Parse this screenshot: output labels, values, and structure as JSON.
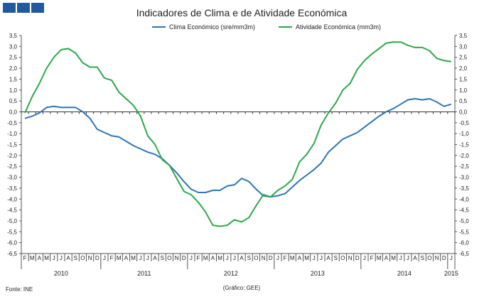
{
  "chart_data": {
    "type": "line",
    "title": "Indicadores de Clima e de Atividade Económica",
    "source": "Fonte: INE",
    "credit": "(Gráfico: GEE)",
    "ylim": [
      -6.5,
      3.5
    ],
    "yticks": [
      "3,5",
      "3,0",
      "2,5",
      "2,0",
      "1,5",
      "1,0",
      "0,5",
      "0,0",
      "-0,5",
      "-1,0",
      "-1,5",
      "-2,0",
      "-2,5",
      "-3,0",
      "-3,5",
      "-4,0",
      "-4,5",
      "-5,0",
      "-5,5",
      "-6,0",
      "-6,5"
    ],
    "months": [
      "F",
      "M",
      "A",
      "M",
      "J",
      "J",
      "A",
      "S",
      "O",
      "N",
      "D",
      "J",
      "F",
      "M",
      "A",
      "M",
      "J",
      "J",
      "A",
      "S",
      "O",
      "N",
      "D",
      "J",
      "F",
      "M",
      "A",
      "M",
      "J",
      "J",
      "A",
      "S",
      "O",
      "N",
      "D",
      "J",
      "F",
      "M",
      "A",
      "M",
      "J",
      "J",
      "A",
      "S",
      "O",
      "N",
      "D",
      "J",
      "F",
      "M",
      "A",
      "M",
      "J",
      "J",
      "A",
      "S",
      "O",
      "N",
      "D",
      "J"
    ],
    "years": [
      {
        "label": "2010",
        "start": 0,
        "end": 10
      },
      {
        "label": "2011",
        "start": 11,
        "end": 22
      },
      {
        "label": "2012",
        "start": 23,
        "end": 34
      },
      {
        "label": "2013",
        "start": 35,
        "end": 46
      },
      {
        "label": "2014",
        "start": 47,
        "end": 58
      },
      {
        "label": "2015",
        "start": 59,
        "end": 59
      }
    ],
    "series": [
      {
        "name": "Clima Económico (sre/mm3m)",
        "color": "#2e75b6",
        "values": [
          -0.3,
          -0.2,
          -0.05,
          0.2,
          0.25,
          0.2,
          0.2,
          0.2,
          0.0,
          -0.3,
          -0.8,
          -0.95,
          -1.1,
          -1.15,
          -1.35,
          -1.55,
          -1.7,
          -1.85,
          -1.95,
          -2.15,
          -2.45,
          -2.8,
          -3.2,
          -3.55,
          -3.7,
          -3.7,
          -3.6,
          -3.6,
          -3.4,
          -3.35,
          -3.05,
          -3.2,
          -3.55,
          -3.85,
          -3.9,
          -3.85,
          -3.75,
          -3.45,
          -3.15,
          -2.9,
          -2.65,
          -2.35,
          -1.85,
          -1.55,
          -1.25,
          -1.1,
          -0.95,
          -0.7,
          -0.45,
          -0.2,
          0.0,
          0.15,
          0.35,
          0.55,
          0.6,
          0.55,
          0.6,
          0.45,
          0.25,
          0.35
        ]
      },
      {
        "name": "Atividade Económica (mm3m)",
        "color": "#2ca84a",
        "values": [
          -0.05,
          0.7,
          1.3,
          2.0,
          2.5,
          2.85,
          2.9,
          2.7,
          2.25,
          2.05,
          2.05,
          1.55,
          1.45,
          0.9,
          0.6,
          0.3,
          -0.2,
          -1.1,
          -1.5,
          -2.2,
          -2.45,
          -3.05,
          -3.65,
          -3.8,
          -4.15,
          -4.6,
          -5.2,
          -5.25,
          -5.2,
          -4.95,
          -5.05,
          -4.85,
          -4.3,
          -3.8,
          -3.9,
          -3.6,
          -3.4,
          -3.1,
          -2.3,
          -1.95,
          -1.45,
          -0.6,
          -0.05,
          0.4,
          1.0,
          1.3,
          1.95,
          2.35,
          2.65,
          2.9,
          3.15,
          3.2,
          3.2,
          3.05,
          2.95,
          2.95,
          2.8,
          2.45,
          2.35,
          2.3
        ]
      }
    ]
  }
}
